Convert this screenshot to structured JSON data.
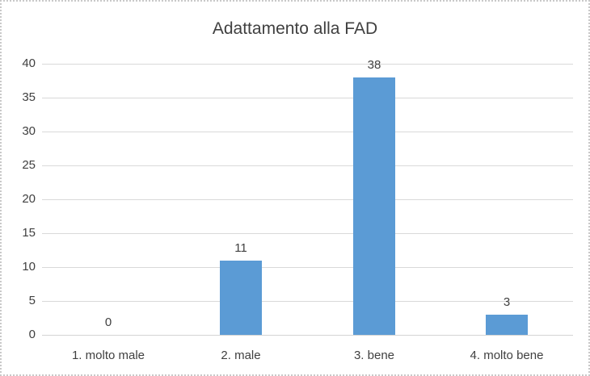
{
  "chart_data": {
    "type": "bar",
    "title": "Adattamento alla FAD",
    "categories": [
      "1. molto male",
      "2. male",
      "3. bene",
      "4. molto bene"
    ],
    "values": [
      0,
      11,
      38,
      3
    ],
    "data_labels": [
      "0",
      "11",
      "38",
      "3"
    ],
    "xlabel": "",
    "ylabel": "",
    "ylim": [
      0,
      40
    ],
    "y_ticks": [
      0,
      5,
      10,
      15,
      20,
      25,
      30,
      35,
      40
    ],
    "grid": true,
    "legend_position": "none",
    "bar_color": "#5B9BD5",
    "gridline_color": "#D9D9D9",
    "axis_line_color": "#D4D4D4",
    "text_color": "#404040",
    "title_color": "#404040",
    "background_color": "#FFFFFF",
    "border_color": "#C9C9C9"
  }
}
